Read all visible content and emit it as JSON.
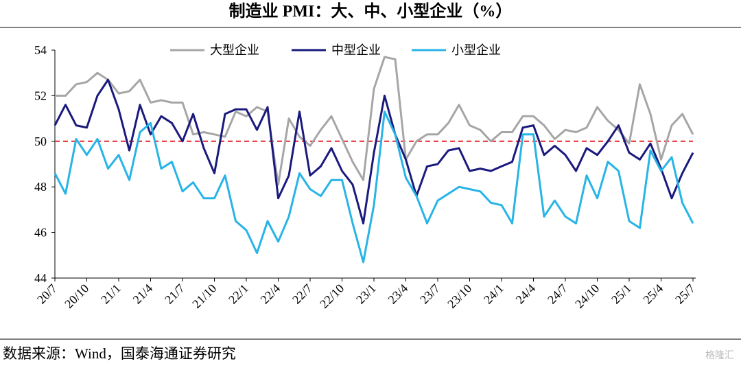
{
  "chart_data": {
    "type": "line",
    "title": "制造业 PMI：大、中、小型企业（%）",
    "source": "数据来源：Wind，国泰海通证券研究",
    "watermark": "格隆汇",
    "categories": [
      "20/7",
      null,
      null,
      "20/10",
      null,
      null,
      "21/1",
      null,
      null,
      "21/4",
      null,
      null,
      "21/7",
      null,
      null,
      "21/10",
      null,
      null,
      "22/1",
      null,
      null,
      "22/4",
      null,
      null,
      "22/7",
      null,
      null,
      "22/10",
      null,
      null,
      "23/1",
      null,
      null,
      "23/4",
      null,
      null,
      "23/7",
      null,
      null,
      "23/10",
      null,
      null,
      "24/1",
      null,
      null,
      "24/4",
      null,
      null,
      "24/7",
      null,
      null,
      "24/10",
      null,
      null,
      "25/1",
      null,
      null,
      "25/4",
      null,
      null,
      "25/7"
    ],
    "series": [
      {
        "name": "大型企业",
        "color": "#a6a6a6",
        "values": [
          52.0,
          52.0,
          52.5,
          52.6,
          53.0,
          52.7,
          52.1,
          52.2,
          52.7,
          51.7,
          51.8,
          51.7,
          51.7,
          50.3,
          50.4,
          50.3,
          50.2,
          51.3,
          51.1,
          51.5,
          51.3,
          48.1,
          51.0,
          50.2,
          49.8,
          50.5,
          51.1,
          50.1,
          49.1,
          48.3,
          52.3,
          53.7,
          53.6,
          49.2,
          50.0,
          50.3,
          50.3,
          50.8,
          51.6,
          50.7,
          50.5,
          50.0,
          50.4,
          50.4,
          51.1,
          51.1,
          50.7,
          50.1,
          50.5,
          50.4,
          50.6,
          51.5,
          50.9,
          50.5,
          49.9,
          52.5,
          51.2,
          49.2,
          50.7,
          51.2,
          50.3
        ]
      },
      {
        "name": "中型企业",
        "color": "#1a1a7e",
        "values": [
          50.7,
          51.6,
          50.7,
          50.6,
          52.0,
          52.7,
          51.4,
          49.6,
          51.6,
          50.3,
          51.1,
          50.8,
          50.0,
          51.2,
          49.7,
          48.6,
          51.2,
          51.4,
          51.4,
          50.5,
          51.5,
          47.5,
          48.5,
          51.3,
          48.5,
          48.9,
          49.7,
          48.7,
          48.1,
          46.4,
          49.5,
          52.0,
          50.3,
          49.2,
          47.6,
          48.9,
          49.0,
          49.6,
          49.7,
          48.7,
          48.8,
          48.7,
          48.9,
          49.1,
          50.6,
          50.7,
          49.4,
          49.8,
          49.4,
          48.7,
          49.7,
          49.4,
          50.0,
          50.7,
          49.5,
          49.2,
          49.9,
          48.8,
          47.5,
          48.6,
          49.5
        ]
      },
      {
        "name": "小型企业",
        "color": "#27b4e6",
        "values": [
          48.6,
          47.7,
          50.1,
          49.4,
          50.1,
          48.8,
          49.4,
          48.3,
          50.4,
          50.8,
          48.8,
          49.1,
          47.8,
          48.2,
          47.5,
          47.5,
          48.5,
          46.5,
          46.1,
          45.1,
          46.5,
          45.6,
          46.7,
          48.6,
          47.9,
          47.6,
          48.3,
          48.3,
          46.4,
          44.7,
          47.2,
          51.3,
          50.3,
          48.4,
          47.6,
          46.4,
          47.4,
          47.7,
          48.0,
          47.9,
          47.8,
          47.3,
          47.2,
          46.4,
          50.3,
          50.3,
          46.7,
          47.4,
          46.7,
          46.4,
          48.5,
          47.5,
          49.1,
          48.7,
          46.5,
          46.2,
          49.6,
          48.7,
          49.3,
          47.3,
          46.4
        ]
      }
    ],
    "reference_line": {
      "value": 50,
      "color": "#e8262b"
    },
    "ylim": [
      44,
      54
    ],
    "yticks": [
      44,
      46,
      48,
      50,
      52,
      54
    ],
    "legend": "top"
  }
}
